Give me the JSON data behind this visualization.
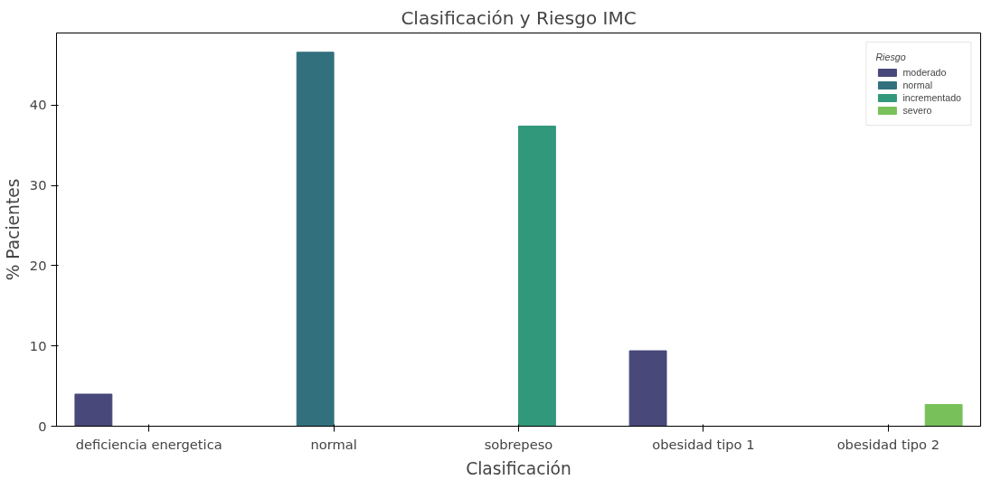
{
  "chart_data": {
    "type": "bar",
    "title": "Clasificación y Riesgo IMC",
    "xlabel": "Clasificación",
    "ylabel": "% Pacientes",
    "legend_title": "Riesgo",
    "categories": [
      "deficiencia energetica",
      "normal",
      "sobrepeso",
      "obesidad tipo 1",
      "obesidad tipo 2"
    ],
    "series": [
      {
        "name": "moderado",
        "color": "#48487a",
        "values": [
          4.0,
          null,
          null,
          9.4,
          null
        ]
      },
      {
        "name": "normal",
        "color": "#33707e",
        "values": [
          null,
          46.6,
          null,
          null,
          null
        ]
      },
      {
        "name": "incrementado",
        "color": "#32987c",
        "values": [
          null,
          null,
          37.4,
          null,
          null
        ]
      },
      {
        "name": "severo",
        "color": "#78c05a",
        "values": [
          null,
          null,
          null,
          null,
          2.7
        ]
      }
    ],
    "ylim": [
      0,
      49
    ],
    "yticks": [
      0,
      10,
      20,
      30,
      40
    ],
    "grid": false,
    "legend": "top right"
  }
}
